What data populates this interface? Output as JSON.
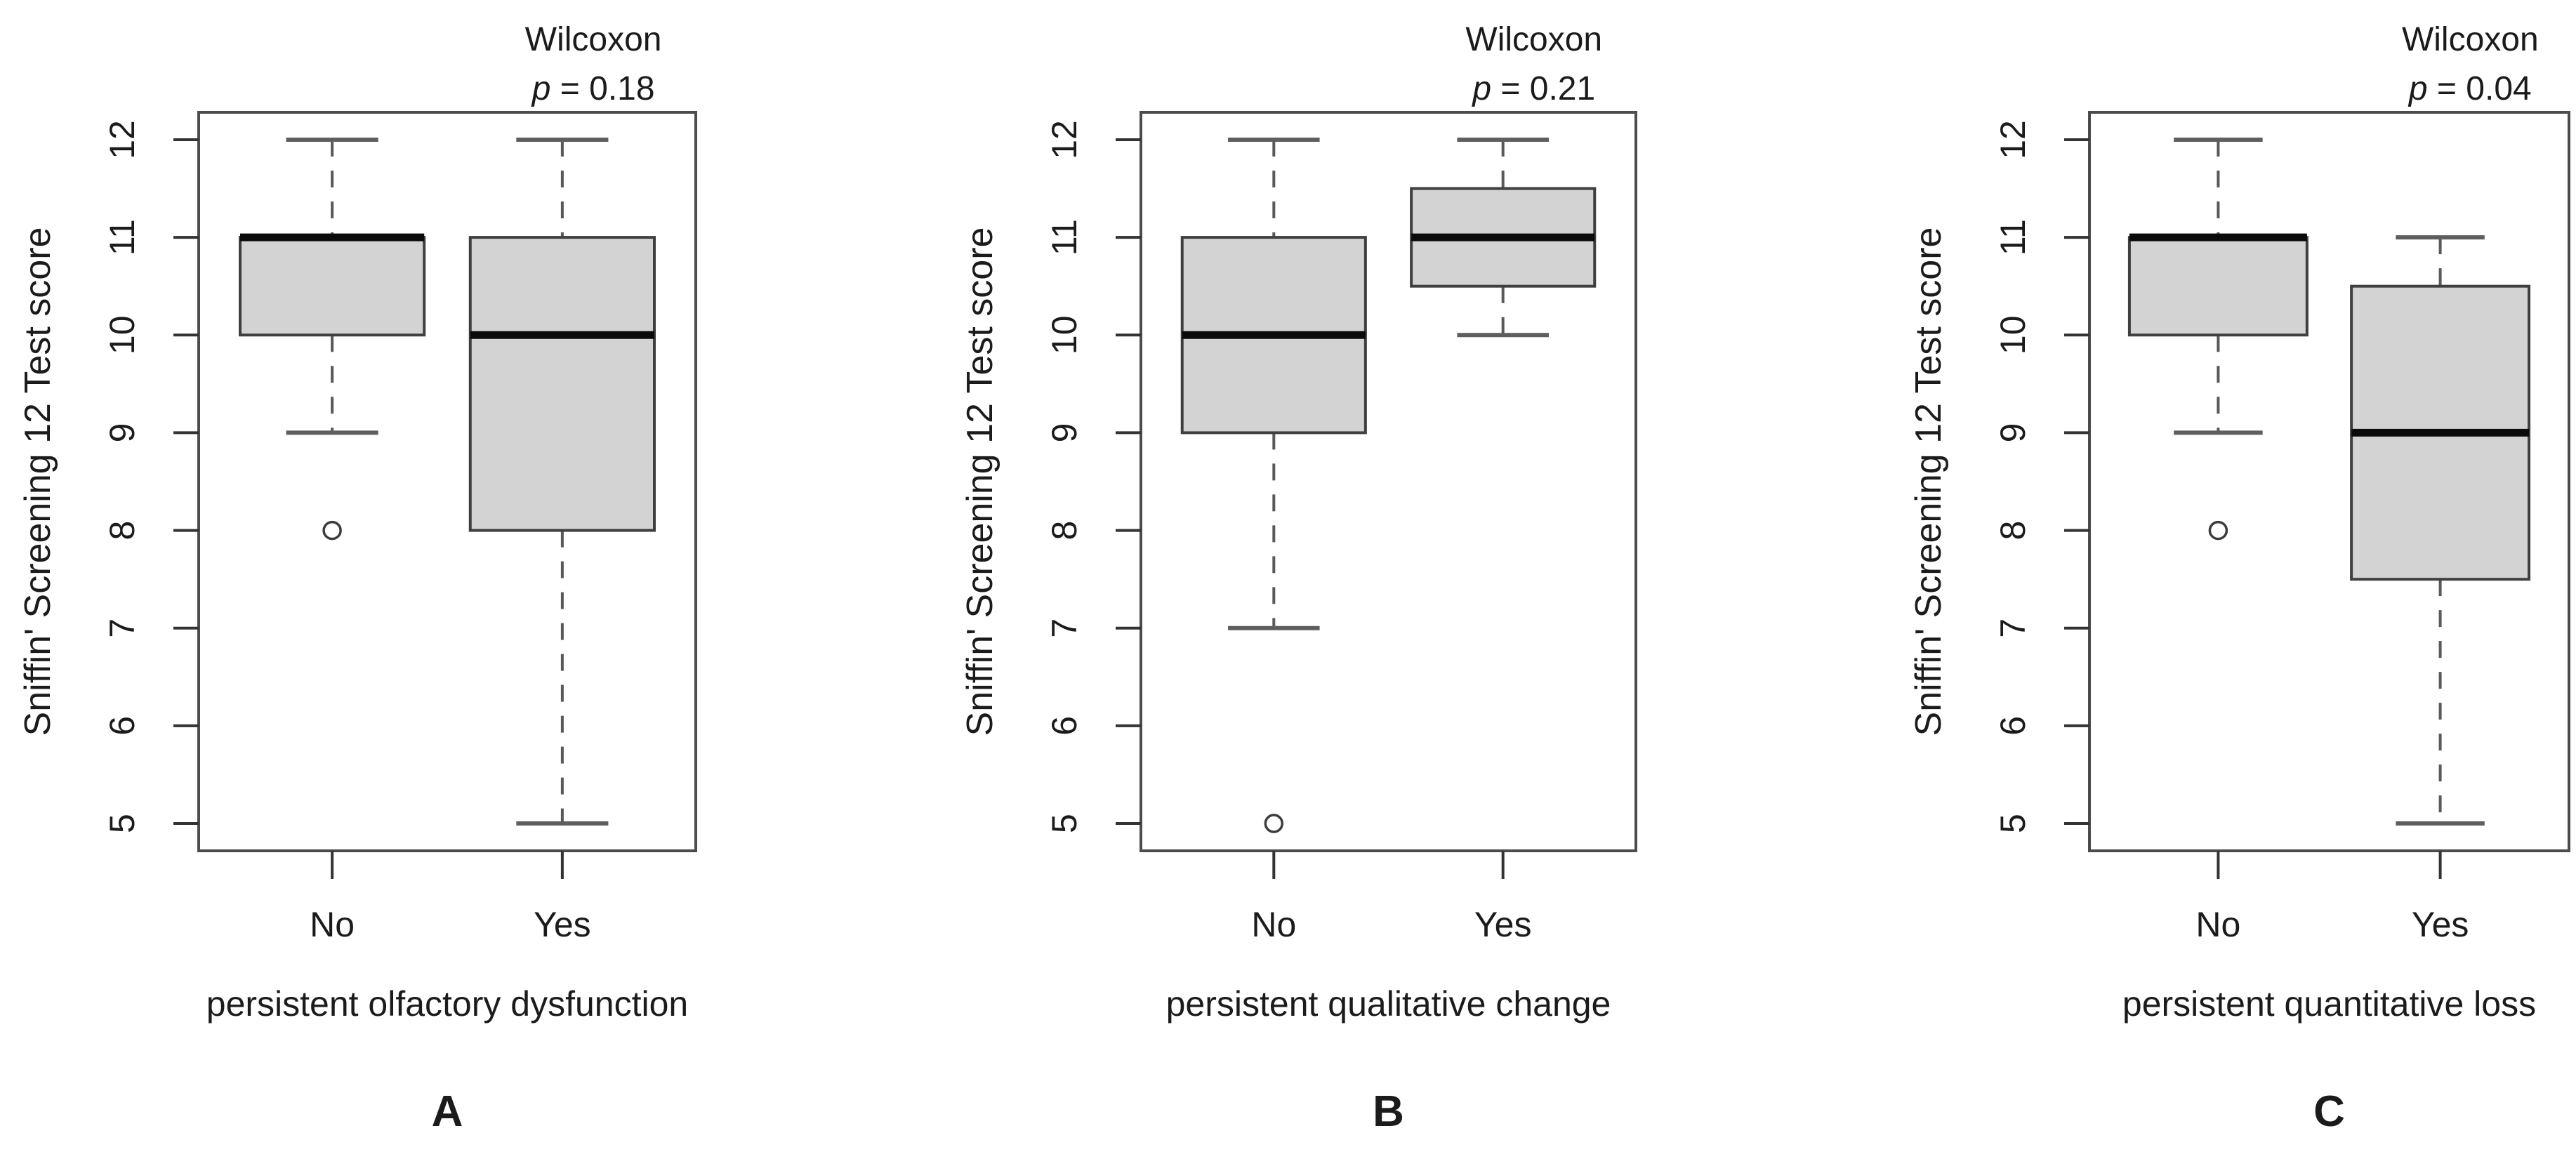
{
  "figure": {
    "y_axis_label": "Sniffin' Screening 12 Test score",
    "y_ticks": [
      5,
      6,
      7,
      8,
      9,
      10,
      11,
      12
    ],
    "colors": {
      "background": "#ffffff",
      "box_fill": "#d3d3d3",
      "box_border": "#3f3f3f",
      "median": "#0b0b0b",
      "whisker": "#595959",
      "staple": "#5e5e5e",
      "frame": "#4c4c4c",
      "tick": "#333333",
      "text": "#1b1b1b"
    }
  },
  "chart_data": [
    {
      "type": "boxplot",
      "panel_label": "A",
      "title": {
        "test": "Wilcoxon",
        "p_symbol": "p",
        "p_rest": " = 0.18"
      },
      "xlabel": "persistent olfactory dysfunction",
      "ylabel": "Sniffin' Screening 12 Test score",
      "ylim": [
        5,
        12
      ],
      "categories": [
        "No",
        "Yes"
      ],
      "boxes": [
        {
          "category": "No",
          "whisker_low": 9,
          "q1": 10,
          "median": 11,
          "q3": 11,
          "whisker_high": 12,
          "outliers": [
            8
          ]
        },
        {
          "category": "Yes",
          "whisker_low": 5,
          "q1": 8,
          "median": 10,
          "q3": 11,
          "whisker_high": 12,
          "outliers": []
        }
      ]
    },
    {
      "type": "boxplot",
      "panel_label": "B",
      "title": {
        "test": "Wilcoxon",
        "p_symbol": "p",
        "p_rest": " = 0.21"
      },
      "xlabel": "persistent qualitative change",
      "ylabel": "Sniffin' Screening 12 Test score",
      "ylim": [
        5,
        12
      ],
      "categories": [
        "No",
        "Yes"
      ],
      "boxes": [
        {
          "category": "No",
          "whisker_low": 7,
          "q1": 9,
          "median": 10,
          "q3": 11,
          "whisker_high": 12,
          "outliers": [
            5
          ]
        },
        {
          "category": "Yes",
          "whisker_low": 10,
          "q1": 10.5,
          "median": 11,
          "q3": 11.5,
          "whisker_high": 12,
          "outliers": []
        }
      ]
    },
    {
      "type": "boxplot",
      "panel_label": "C",
      "title": {
        "test": "Wilcoxon",
        "p_symbol": "p",
        "p_rest": " = 0.04"
      },
      "xlabel": "persistent quantitative loss",
      "ylabel": "Sniffin' Screening 12 Test score",
      "ylim": [
        5,
        12
      ],
      "categories": [
        "No",
        "Yes"
      ],
      "boxes": [
        {
          "category": "No",
          "whisker_low": 9,
          "q1": 10,
          "median": 11,
          "q3": 11,
          "whisker_high": 12,
          "outliers": [
            8
          ]
        },
        {
          "category": "Yes",
          "whisker_low": 5,
          "q1": 7.5,
          "median": 9,
          "q3": 10.5,
          "whisker_high": 11,
          "outliers": []
        }
      ]
    }
  ]
}
